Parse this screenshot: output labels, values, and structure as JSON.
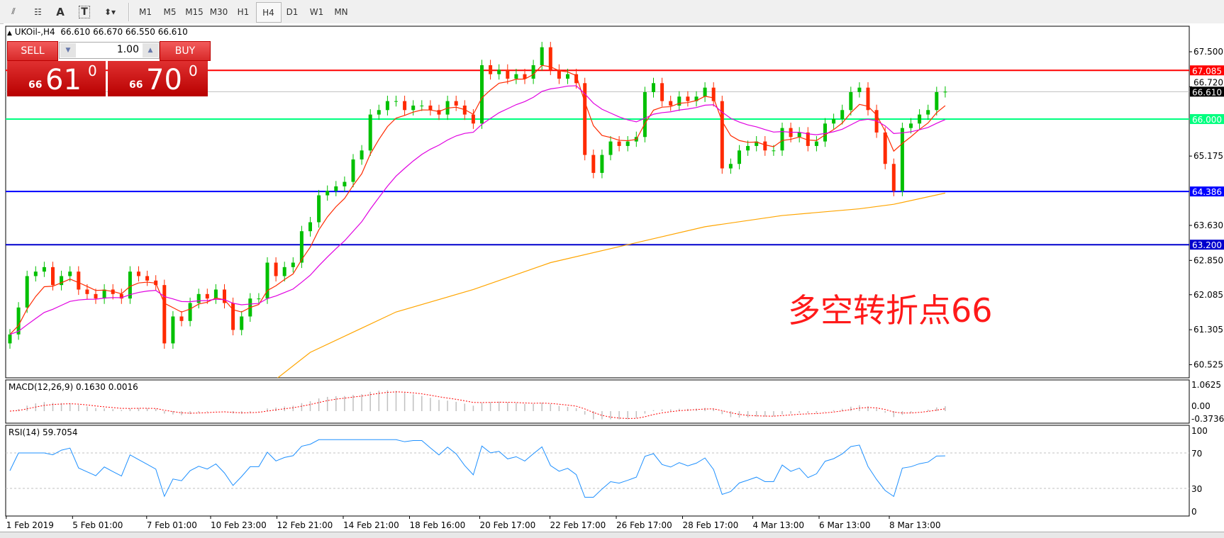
{
  "toolbar": {
    "tools": [
      {
        "icon": "fibonacci-expansion-icon"
      },
      {
        "icon": "fibonacci-fan-icon"
      },
      {
        "icon": "text-icon",
        "label": "A"
      },
      {
        "icon": "text-label-icon",
        "label": "T"
      },
      {
        "icon": "arrows-dropdown-icon"
      }
    ],
    "timeframes": [
      "M1",
      "M5",
      "M15",
      "M30",
      "H1",
      "H4",
      "D1",
      "W1",
      "MN"
    ],
    "active_timeframe": "H4"
  },
  "header": {
    "symbol_line": "UKOil-,H4",
    "ohlc": "66.610 66.670 66.550 66.610"
  },
  "trade_panel": {
    "sell_label": "SELL",
    "buy_label": "BUY",
    "lot": "1.00",
    "sell_small": "66",
    "sell_big": "61",
    "sell_pip": "0",
    "buy_small": "66",
    "buy_big": "70",
    "buy_pip": "0"
  },
  "annotation": "多空转折点66",
  "colors": {
    "bull": "#00c000",
    "bear": "#ff2a00",
    "ma_fast": "#ff2a00",
    "ma_mid": "#e000e0",
    "ma_slow": "#ffa500",
    "rsi": "#1e90ff",
    "macd_signal": "#ff0000",
    "macd_hist": "#c0c0c0"
  },
  "chart_data": {
    "type": "candlestick",
    "symbol": "UKOil-",
    "timeframe": "H4",
    "price_ticks": [
      "67.500",
      "66.720",
      "65.175",
      "63.630",
      "62.850",
      "62.085",
      "61.305",
      "60.525"
    ],
    "ylim": [
      60.3,
      68.05
    ],
    "closes": [
      61.2,
      61.8,
      62.5,
      62.6,
      62.7,
      62.3,
      62.5,
      62.6,
      62.2,
      62.1,
      62.0,
      62.2,
      62.1,
      62.0,
      62.6,
      62.5,
      62.4,
      62.3,
      61.0,
      61.6,
      61.5,
      61.9,
      62.1,
      62.0,
      62.2,
      61.9,
      61.3,
      61.6,
      62.0,
      62.0,
      62.8,
      62.5,
      62.7,
      62.8,
      63.5,
      63.7,
      64.3,
      64.4,
      64.5,
      64.6,
      65.1,
      65.3,
      66.1,
      66.2,
      66.4,
      66.4,
      66.2,
      66.3,
      66.3,
      66.2,
      66.1,
      66.4,
      66.3,
      66.1,
      65.9,
      67.2,
      67.0,
      67.1,
      66.9,
      67.0,
      66.9,
      67.2,
      67.6,
      67.1,
      66.9,
      67.0,
      66.8,
      65.2,
      64.8,
      65.2,
      65.5,
      65.4,
      65.5,
      65.6,
      66.6,
      66.8,
      66.4,
      66.3,
      66.5,
      66.4,
      66.5,
      66.7,
      66.4,
      64.9,
      65.0,
      65.3,
      65.4,
      65.5,
      65.3,
      65.3,
      65.8,
      65.6,
      65.7,
      65.4,
      65.5,
      65.9,
      66.0,
      66.2,
      66.6,
      66.7,
      66.2,
      65.7,
      65.0,
      64.4,
      65.8,
      65.9,
      66.1,
      66.2,
      66.6,
      66.61
    ],
    "ma_slow_points": [
      [
        31,
        60.2
      ],
      [
        35,
        60.8
      ],
      [
        45,
        61.7
      ],
      [
        54,
        62.2
      ],
      [
        63,
        62.8
      ],
      [
        72,
        63.2
      ],
      [
        81,
        63.6
      ],
      [
        90,
        63.85
      ],
      [
        99,
        64.0
      ],
      [
        103,
        64.1
      ],
      [
        109,
        64.35
      ]
    ],
    "levels": [
      {
        "price": "67.085",
        "color": "#ff0000"
      },
      {
        "price": "66.610",
        "color": "#000000",
        "current": true
      },
      {
        "price": "66.000",
        "color": "#00ff7f"
      },
      {
        "price": "64.386",
        "color": "#0000ff"
      },
      {
        "price": "63.200",
        "color": "#0000cd"
      }
    ],
    "time_labels": [
      "1 Feb 2019",
      "5 Feb 01:00",
      "7 Feb 01:00",
      "10 Feb 23:00",
      "12 Feb 21:00",
      "14 Feb 21:00",
      "18 Feb 16:00",
      "20 Feb 17:00",
      "22 Feb 17:00",
      "26 Feb 17:00",
      "28 Feb 17:00",
      "4 Mar 13:00",
      "6 Mar 13:00",
      "8 Mar 13:00"
    ],
    "macd": {
      "label": "MACD(12,26,9) 0.1630 0.0016",
      "ticks": [
        "1.0625",
        "0.00",
        "-0.3736"
      ],
      "range": [
        -0.3736,
        1.0625
      ]
    },
    "rsi": {
      "label": "RSI(14) 59.7054",
      "ticks": [
        "100",
        "70",
        "30",
        "0"
      ],
      "levels": [
        70,
        30
      ]
    }
  }
}
